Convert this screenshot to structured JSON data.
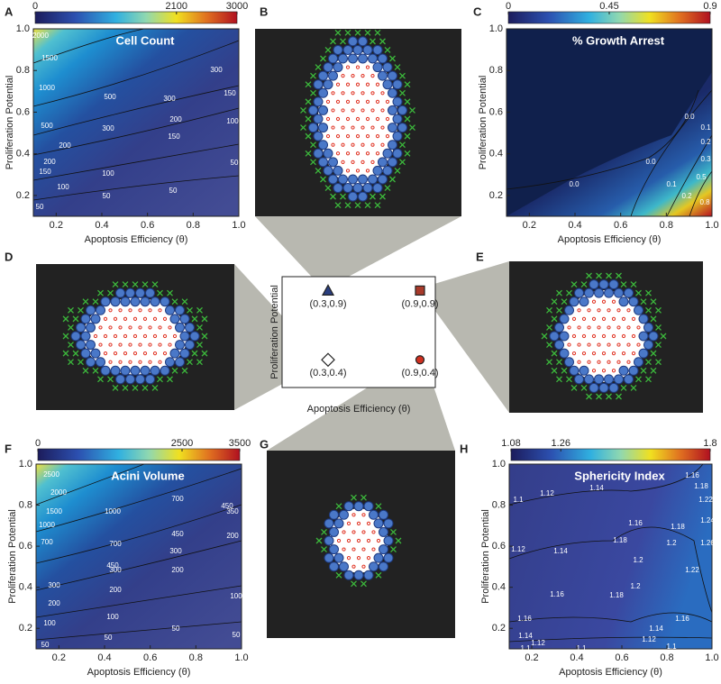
{
  "images": [
    {
      "panel": "B"
    },
    {
      "panel": "D"
    },
    {
      "panel": "E"
    },
    {
      "panel": "G"
    }
  ],
  "chart_data": [
    {
      "type": "contour",
      "panel": "A",
      "title": "Cell Count",
      "x_label": "Apoptosis Efficiency (θ)",
      "y_label": "Proliferation Potential",
      "xlim": [
        0.1,
        1.0
      ],
      "ylim": [
        0.1,
        1.0
      ],
      "xticks": [
        0.2,
        0.4,
        0.6,
        0.8,
        {
          "value": 1,
          "label": "1.0"
        }
      ],
      "yticks": [
        0.2,
        0.4,
        0.6,
        0.8,
        {
          "value": 1,
          "label": "1.0"
        }
      ],
      "colorbar": {
        "lim": [
          0,
          3000
        ],
        "ticks": [
          0,
          2100,
          3000
        ]
      },
      "contour_labels": [
        "2000",
        "1500",
        "1000",
        "500",
        "300",
        "300",
        "500",
        "300",
        "200",
        "150",
        "100",
        "200",
        "150",
        "200",
        "150",
        "100",
        "100",
        "50",
        "50",
        "50",
        "50"
      ]
    },
    {
      "type": "contour",
      "panel": "C",
      "title": "% Growth Arrest",
      "x_label": "Apoptosis Efficiency (θ)",
      "y_label": "Proliferation Potential",
      "xlim": [
        0.1,
        1.0
      ],
      "ylim": [
        0.1,
        1.0
      ],
      "xticks": [
        0.2,
        0.4,
        0.6,
        0.8,
        {
          "value": 1,
          "label": "1.0"
        }
      ],
      "yticks": [
        0.2,
        0.4,
        0.6,
        0.8,
        {
          "value": 1,
          "label": "1.0"
        }
      ],
      "colorbar": {
        "lim": [
          0,
          0.9
        ],
        "ticks": [
          0,
          0.45,
          0.9
        ]
      },
      "contour_labels": [
        "0.0",
        "0.0",
        "0.0",
        "0.1",
        "0.2",
        "0.3",
        "0.1",
        "0.2",
        "0.5",
        "0.8"
      ]
    },
    {
      "type": "scatter",
      "x_label": "Apoptosis Efficiency (θ)",
      "y_label": "Proliferation Potential",
      "xlim": [
        0,
        1.0
      ],
      "ylim": [
        0.2,
        1.0
      ],
      "x": [
        0.3,
        0.9,
        0.3,
        0.9
      ],
      "values": [
        0.9,
        0.9,
        0.4,
        0.4
      ],
      "point_labels": [
        "(0.3,0.9)",
        "(0.9,0.9)",
        "(0.3,0.4)",
        "(0.9,0.4)"
      ],
      "markers": [
        "triangle",
        "square",
        "diamond",
        "circle"
      ],
      "colors": [
        "#2a3f80",
        "#a83a2a",
        "#ffffff",
        "#d03020"
      ]
    },
    {
      "type": "contour",
      "panel": "F",
      "title": "Acini Volume",
      "x_label": "Apoptosis Efficiency (θ)",
      "y_label": "Proliferation Potential",
      "xlim": [
        0.1,
        1.0
      ],
      "ylim": [
        0.1,
        1.0
      ],
      "xticks": [
        0.2,
        0.4,
        0.6,
        0.8,
        {
          "value": 1,
          "label": "1.0"
        }
      ],
      "yticks": [
        0.2,
        0.4,
        0.6,
        0.8,
        {
          "value": 1,
          "label": "1.0"
        }
      ],
      "colorbar": {
        "lim": [
          0,
          3500
        ],
        "ticks": [
          0,
          2500,
          3500
        ]
      },
      "contour_labels": [
        "2500",
        "2000",
        "1500",
        "1000",
        "700",
        "450",
        "1000",
        "700",
        "700",
        "450",
        "350",
        "450",
        "300",
        "200",
        "300",
        "300",
        "200",
        "200",
        "200",
        "100",
        "100",
        "100",
        "50",
        "50",
        "50",
        "50"
      ]
    },
    {
      "type": "contour",
      "panel": "H",
      "title": "Sphericity Index",
      "x_label": "Apoptosis Efficiency (θ)",
      "y_label": "Proliferation Potential",
      "xlim": [
        0.1,
        1.0
      ],
      "ylim": [
        0.1,
        1.0
      ],
      "xticks": [
        0.2,
        0.4,
        0.6,
        0.8,
        {
          "value": 1,
          "label": "1.0"
        }
      ],
      "yticks": [
        0.2,
        0.4,
        0.6,
        0.8,
        {
          "value": 1,
          "label": "1.0"
        }
      ],
      "colorbar": {
        "lim": [
          1.08,
          1.8
        ],
        "ticks": [
          1.08,
          1.26,
          1.8
        ]
      },
      "contour_labels": [
        "1.1",
        "1.12",
        "1.14",
        "1.16",
        "1.18",
        "1.22",
        "1.12",
        "1.14",
        "1.16",
        "1.18",
        "1.24",
        "1.2",
        "1.26",
        "1.18",
        "1.2",
        "1.22",
        "1.16",
        "1.2",
        "1.18",
        "1.16",
        "1.16",
        "1.14",
        "1.14",
        "1.12",
        "1.12",
        "1.1",
        "1.1",
        "1.1"
      ]
    }
  ]
}
